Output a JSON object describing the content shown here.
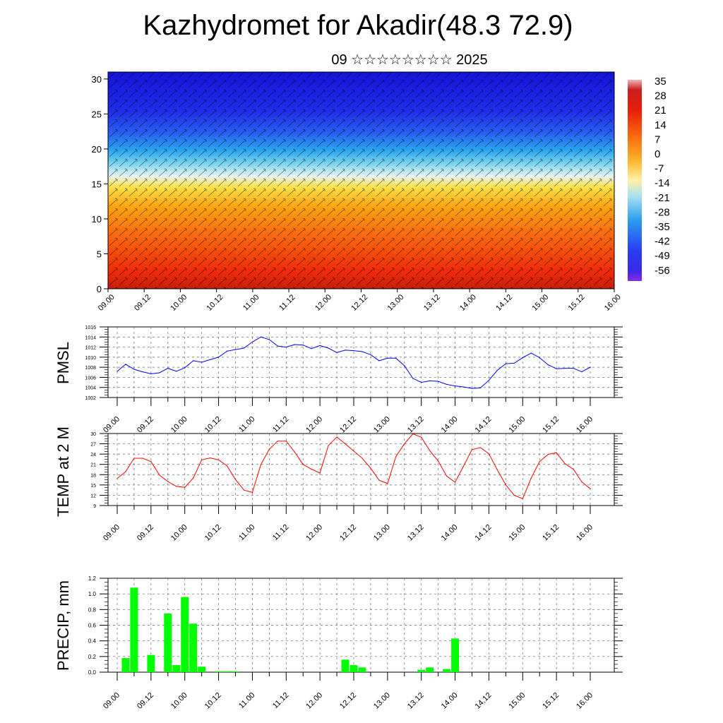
{
  "title": "Kazhydromet for Akadir(48.3 72.9)",
  "subtitle": "09 ☆☆☆☆☆☆☆☆ 2025",
  "colorbar": {
    "labels": [
      "35",
      "28",
      "21",
      "14",
      "7",
      "0",
      "-7",
      "-14",
      "-21",
      "-28",
      "-35",
      "-42",
      "-49",
      "-56"
    ]
  },
  "chart_data": [
    {
      "type": "heatmap",
      "name": "",
      "x_ticks": [
        "09.00",
        "09.12",
        "10.00",
        "10.12",
        "11.00",
        "11.12",
        "12.00",
        "12.12",
        "13.00",
        "13.12",
        "14.00",
        "14.12",
        "15.00",
        "15.12",
        "16.00"
      ],
      "y_ticks": [
        "0",
        "5",
        "10",
        "15",
        "20",
        "25",
        "30"
      ],
      "ylim": [
        0,
        31
      ],
      "color_range": [
        -56,
        35
      ],
      "overlay": "wind barbs"
    },
    {
      "type": "line",
      "ylabel": "PMSL",
      "x_ticks": [
        "09.00",
        "09.12",
        "10.00",
        "10.12",
        "11.00",
        "11.12",
        "12.00",
        "12.12",
        "13.00",
        "13.12",
        "14.00",
        "14.12",
        "15.00",
        "15.12",
        "16.00"
      ],
      "y_ticks": [
        "1002",
        "1004",
        "1006",
        "1008",
        "1010",
        "1012",
        "1014",
        "1016"
      ],
      "ylim": [
        1002,
        1016
      ],
      "color": "#0000ff",
      "x": [
        0,
        3,
        6,
        9,
        12,
        15,
        18,
        21,
        24,
        27,
        30,
        33,
        36,
        39,
        42,
        45,
        48,
        51,
        54,
        57,
        60,
        63,
        66,
        69,
        72,
        75,
        78,
        81,
        84,
        87,
        90,
        93,
        96,
        99,
        102,
        105,
        108,
        111,
        114,
        117,
        120,
        123,
        126,
        129,
        132,
        135,
        138,
        141,
        144,
        147,
        150,
        153,
        156,
        159,
        162,
        165,
        168
      ],
      "values": [
        1007.2,
        1008.6,
        1007.6,
        1007.1,
        1006.7,
        1006.9,
        1007.8,
        1007.2,
        1007.9,
        1009.3,
        1009.0,
        1009.5,
        1010.0,
        1011.2,
        1011.5,
        1011.8,
        1013.0,
        1014.0,
        1013.5,
        1012.2,
        1012.0,
        1012.5,
        1012.4,
        1011.7,
        1012.3,
        1011.8,
        1010.9,
        1011.4,
        1011.3,
        1011.1,
        1010.5,
        1009.3,
        1009.8,
        1009.8,
        1008.3,
        1005.8,
        1005.0,
        1005.3,
        1005.2,
        1004.6,
        1004.3,
        1004.1,
        1003.8,
        1003.9,
        1005.4,
        1007.4,
        1008.7,
        1008.8,
        1009.9,
        1010.8,
        1009.9,
        1008.5,
        1007.7,
        1007.8,
        1007.8,
        1007.1,
        1008.0
      ]
    },
    {
      "type": "line",
      "ylabel": "TEMP at 2 M",
      "x_ticks": [
        "09.00",
        "09.12",
        "10.00",
        "10.12",
        "11.00",
        "11.12",
        "12.00",
        "12.12",
        "13.00",
        "13.12",
        "14.00",
        "14.12",
        "15.00",
        "15.12",
        "16.00"
      ],
      "y_ticks": [
        "9",
        "12",
        "15",
        "18",
        "21",
        "24",
        "27",
        "30"
      ],
      "ylim": [
        9,
        30
      ],
      "color": "#ff0000",
      "x": [
        0,
        3,
        6,
        9,
        12,
        15,
        18,
        21,
        24,
        27,
        30,
        33,
        36,
        39,
        42,
        45,
        48,
        51,
        54,
        57,
        60,
        63,
        66,
        69,
        72,
        75,
        78,
        81,
        84,
        87,
        90,
        93,
        96,
        99,
        102,
        105,
        108,
        111,
        114,
        117,
        120,
        123,
        126,
        129,
        132,
        135,
        138,
        141,
        144,
        147,
        150,
        153,
        156,
        159,
        162,
        165,
        168
      ],
      "values": [
        16.9,
        18.9,
        22.8,
        22.8,
        21.8,
        17.9,
        16.0,
        14.6,
        14.3,
        17.0,
        22.3,
        22.9,
        22.3,
        20.6,
        16.6,
        13.5,
        12.8,
        20.9,
        25.4,
        27.8,
        27.8,
        24.6,
        21.0,
        19.6,
        18.5,
        26.5,
        29.0,
        27.0,
        24.9,
        22.8,
        19.9,
        16.4,
        15.4,
        23.3,
        27.0,
        29.9,
        28.9,
        25.0,
        22.0,
        17.6,
        15.8,
        20.5,
        25.3,
        25.9,
        24.1,
        19.4,
        15.0,
        12.0,
        11.0,
        17.0,
        21.8,
        23.9,
        24.4,
        21.2,
        19.6,
        15.9,
        13.9
      ]
    },
    {
      "type": "bar",
      "ylabel": "PRECIP, mm",
      "x_ticks": [
        "09.00",
        "09.12",
        "10.00",
        "10.12",
        "11.00",
        "11.12",
        "12.00",
        "12.12",
        "13.00",
        "13.12",
        "14.00",
        "14.12",
        "15.00",
        "15.12",
        "16.00"
      ],
      "y_ticks": [
        "0.0",
        "0.2",
        "0.4",
        "0.6",
        "0.8",
        "1.0",
        "1.2"
      ],
      "ylim": [
        0,
        1.2
      ],
      "color": "#00ff00",
      "x": [
        3,
        6,
        12,
        18,
        21,
        24,
        27,
        30,
        36,
        39,
        42,
        81,
        84,
        87,
        108,
        111,
        117,
        120
      ],
      "values": [
        0.18,
        1.08,
        0.22,
        0.75,
        0.09,
        0.96,
        0.62,
        0.07,
        0.01,
        0.01,
        0.01,
        0.16,
        0.09,
        0.06,
        0.03,
        0.06,
        0.04,
        0.43
      ]
    }
  ]
}
